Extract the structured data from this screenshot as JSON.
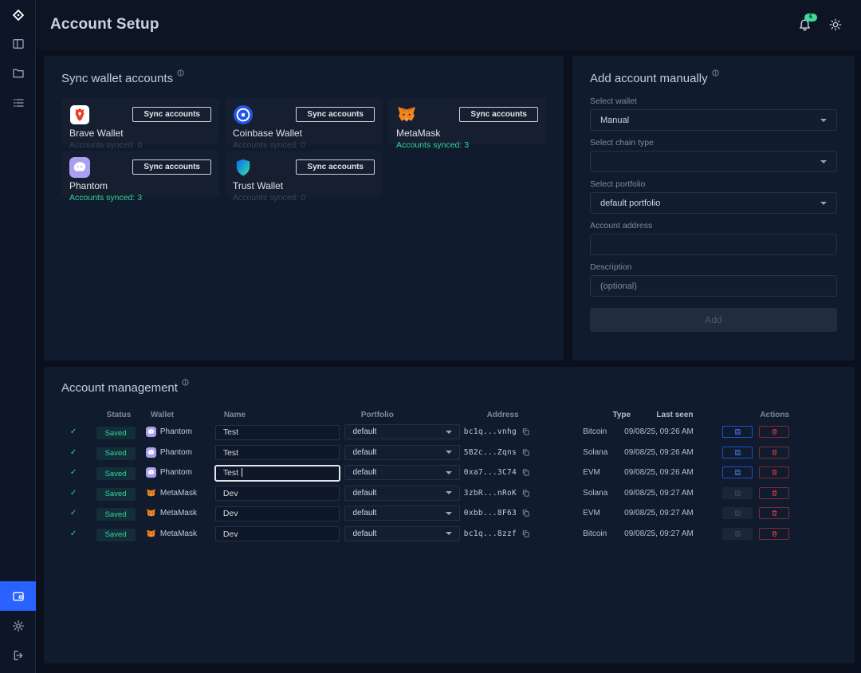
{
  "header": {
    "title": "Account Setup",
    "notification_badge": "6"
  },
  "sidebar": {
    "items": [
      {
        "name": "dashboard",
        "icon": "dashboard-icon",
        "active": false
      },
      {
        "name": "assets",
        "icon": "folder-icon",
        "active": false
      },
      {
        "name": "history",
        "icon": "list-icon",
        "active": false
      }
    ],
    "bottom_items": [
      {
        "name": "accounts",
        "icon": "wallet-icon",
        "active": true
      },
      {
        "name": "settings",
        "icon": "gear-icon",
        "active": false
      },
      {
        "name": "logout",
        "icon": "logout-icon",
        "active": false
      }
    ]
  },
  "sync_panel": {
    "title": "Sync wallet accounts",
    "sync_button_label": "Sync accounts",
    "wallets": [
      {
        "name": "Brave Wallet",
        "icon": "brave-wallet-icon",
        "synced_text": "Accounts synced: 0",
        "synced_active": false
      },
      {
        "name": "Coinbase Wallet",
        "icon": "coinbase-wallet-icon",
        "synced_text": "Accounts synced: 0",
        "synced_active": false
      },
      {
        "name": "MetaMask",
        "icon": "metamask-icon",
        "synced_text": "Accounts synced: 3",
        "synced_active": true
      },
      {
        "name": "Phantom",
        "icon": "phantom-icon",
        "synced_text": "Accounts synced: 3",
        "synced_active": true
      },
      {
        "name": "Trust Wallet",
        "icon": "trust-wallet-icon",
        "synced_text": "Accounts synced: 0",
        "synced_active": false
      }
    ]
  },
  "add_panel": {
    "title": "Add account manually",
    "select_wallet_label": "Select wallet",
    "select_wallet_value": "Manual",
    "chain_type_label": "Select chain type",
    "chain_type_value": "",
    "portfolio_label": "Select portfolio",
    "portfolio_value": "default portfolio",
    "address_label": "Account address",
    "address_value": "",
    "description_label": "Description",
    "description_placeholder": "(optional)",
    "add_button_label": "Add"
  },
  "management": {
    "title": "Account management",
    "columns": [
      "Status",
      "Wallet",
      "Name",
      "Portfolio",
      "Address",
      "Type",
      "Last seen",
      "Actions"
    ],
    "rows": [
      {
        "status": "Saved",
        "wallet": "Phantom",
        "wallet_icon": "phantom-icon",
        "name": "Test",
        "portfolio": "default",
        "address": "bc1q...vnhg",
        "type": "Bitcoin",
        "last_seen": "09/08/25, 09:26 AM",
        "save_enabled": true,
        "name_focused": false
      },
      {
        "status": "Saved",
        "wallet": "Phantom",
        "wallet_icon": "phantom-icon",
        "name": "Test",
        "portfolio": "default",
        "address": "5B2c...Zqns",
        "type": "Solana",
        "last_seen": "09/08/25, 09:26 AM",
        "save_enabled": true,
        "name_focused": false
      },
      {
        "status": "Saved",
        "wallet": "Phantom",
        "wallet_icon": "phantom-icon",
        "name": "Test",
        "portfolio": "default",
        "address": "0xa7...3C74",
        "type": "EVM",
        "last_seen": "09/08/25, 09:26 AM",
        "save_enabled": true,
        "name_focused": true
      },
      {
        "status": "Saved",
        "wallet": "MetaMask",
        "wallet_icon": "metamask-icon",
        "name": "Dev",
        "portfolio": "default",
        "address": "3zbR...nRoK",
        "type": "Solana",
        "last_seen": "09/08/25, 09:27 AM",
        "save_enabled": false,
        "name_focused": false
      },
      {
        "status": "Saved",
        "wallet": "MetaMask",
        "wallet_icon": "metamask-icon",
        "name": "Dev",
        "portfolio": "default",
        "address": "0xbb...8F63",
        "type": "EVM",
        "last_seen": "09/08/25, 09:27 AM",
        "save_enabled": false,
        "name_focused": false
      },
      {
        "status": "Saved",
        "wallet": "MetaMask",
        "wallet_icon": "metamask-icon",
        "name": "Dev",
        "portfolio": "default",
        "address": "bc1q...8zzf",
        "type": "Bitcoin",
        "last_seen": "09/08/25, 09:27 AM",
        "save_enabled": false,
        "name_focused": false
      }
    ]
  },
  "colors": {
    "accent_blue": "#2962ff",
    "success_green": "#35d49a",
    "danger_red": "#cf4046",
    "badge_green": "#3ddc97"
  }
}
